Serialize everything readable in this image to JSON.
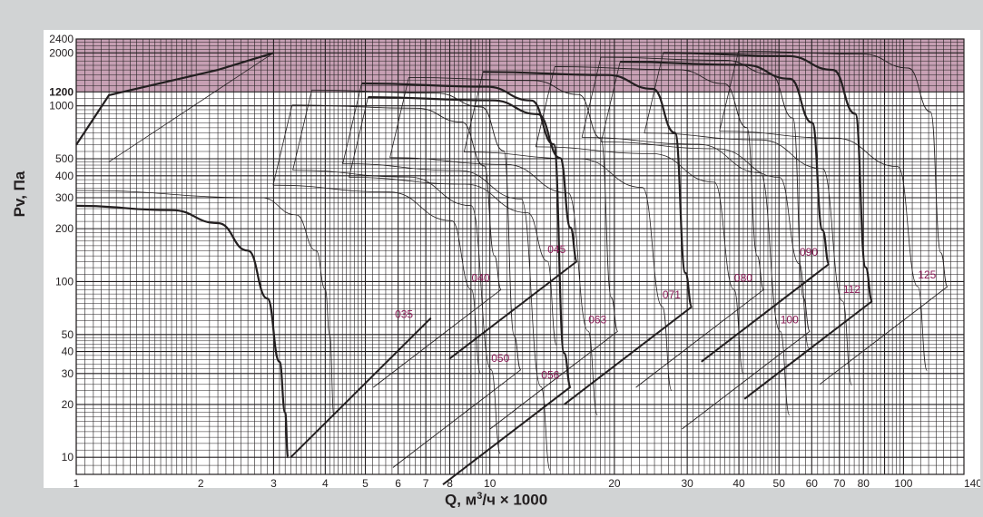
{
  "chart_data": {
    "type": "line",
    "title": "",
    "xlabel": {
      "before": "Q, м",
      "sup": "3",
      "after": "/ч × 1000"
    },
    "ylabel": "Pv, Па",
    "x_scale": "log",
    "y_scale": "log",
    "xlim": [
      1,
      140
    ],
    "ylim": [
      8,
      2400
    ],
    "x_ticks": [
      {
        "value": 1,
        "label": "1"
      },
      {
        "value": 2,
        "label": "2"
      },
      {
        "value": 3,
        "label": "3"
      },
      {
        "value": 4,
        "label": "4"
      },
      {
        "value": 5,
        "label": "5"
      },
      {
        "value": 6,
        "label": "6"
      },
      {
        "value": 7,
        "label": "7"
      },
      {
        "value": 8,
        "label": "8"
      },
      {
        "value": 10,
        "label": "10"
      },
      {
        "value": 20,
        "label": "20"
      },
      {
        "value": 30,
        "label": "30"
      },
      {
        "value": 40,
        "label": "40"
      },
      {
        "value": 50,
        "label": "50"
      },
      {
        "value": 60,
        "label": "60"
      },
      {
        "value": 70,
        "label": "70"
      },
      {
        "value": 80,
        "label": "80"
      },
      {
        "value": 100,
        "label": "100"
      },
      {
        "value": 140,
        "label": "140"
      }
    ],
    "y_ticks": [
      {
        "value": 10,
        "label": "10"
      },
      {
        "value": 20,
        "label": "20"
      },
      {
        "value": 30,
        "label": "30"
      },
      {
        "value": 40,
        "label": "40"
      },
      {
        "value": 50,
        "label": "50"
      },
      {
        "value": 100,
        "label": "100"
      },
      {
        "value": 200,
        "label": "200"
      },
      {
        "value": 300,
        "label": "300"
      },
      {
        "value": 400,
        "label": "400"
      },
      {
        "value": 500,
        "label": "500"
      },
      {
        "value": 1000,
        "label": "1000"
      },
      {
        "value": 1200,
        "label": "1200",
        "bold": true
      },
      {
        "value": 2000,
        "label": "2000"
      },
      {
        "value": 2400,
        "label": "2400"
      }
    ],
    "grid": true,
    "highlight_band": {
      "y_from": 1200,
      "y_to": 2400,
      "color": "#c7a0b4"
    },
    "colors": {
      "background": "#d1d3d4",
      "panel": "#ffffff",
      "curve": "#231f20",
      "size_label": "#8a1a55",
      "grid": "#231f20"
    },
    "series": [
      {
        "name": "035",
        "label_at": [
          6.2,
          62
        ],
        "max_curve": [
          [
            1,
            270
          ],
          [
            1.7,
            255
          ],
          [
            2.2,
            215
          ],
          [
            2.6,
            150
          ],
          [
            2.9,
            80
          ],
          [
            3.1,
            35
          ],
          [
            3.2,
            18
          ],
          [
            3.25,
            10
          ]
        ],
        "min_curve": [
          [
            1,
            330
          ],
          [
            2.8,
            300
          ],
          [
            3.4,
            240
          ],
          [
            3.8,
            150
          ],
          [
            4.0,
            90
          ],
          [
            4.1,
            50
          ],
          [
            4.2,
            17
          ]
        ],
        "lower_line": [
          [
            3.3,
            10
          ],
          [
            7.2,
            62
          ]
        ],
        "upper_line": [
          [
            1.2,
            480
          ],
          [
            3.0,
            2000
          ]
        ],
        "points": [
          [
            1,
            600
          ],
          [
            1.2,
            1150
          ],
          [
            2.2,
            1600
          ],
          [
            3.0,
            2000
          ]
        ]
      },
      {
        "name": "040",
        "label_at": [
          9.5,
          100
        ]
      },
      {
        "name": "045",
        "label_at": [
          14.5,
          145
        ]
      },
      {
        "name": "050",
        "label_at": [
          10.6,
          35
        ]
      },
      {
        "name": "056",
        "label_at": [
          14.0,
          28
        ]
      },
      {
        "name": "063",
        "label_at": [
          18.2,
          58
        ]
      },
      {
        "name": "071",
        "label_at": [
          27.5,
          80
        ]
      },
      {
        "name": "080",
        "label_at": [
          41,
          100
        ]
      },
      {
        "name": "090",
        "label_at": [
          59,
          140
        ]
      },
      {
        "name": "100",
        "label_at": [
          53,
          58
        ]
      },
      {
        "name": "112",
        "label_at": [
          75,
          86
        ]
      },
      {
        "name": "125",
        "label_at": [
          114,
          104
        ]
      }
    ]
  }
}
